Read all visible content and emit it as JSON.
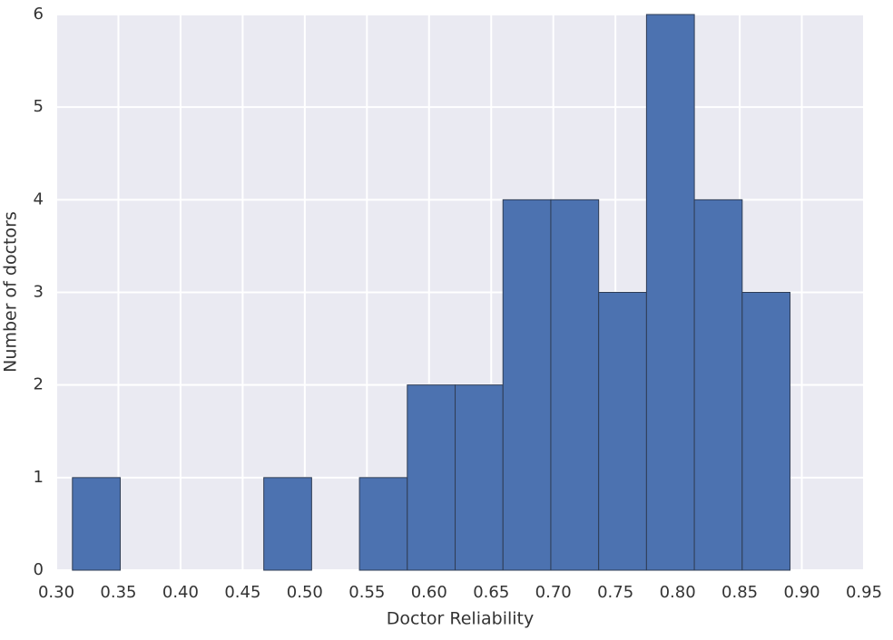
{
  "chart_data": {
    "type": "histogram",
    "x_label": "Doctor Reliability",
    "y_label": "Number of doctors",
    "bins": [
      0.313,
      0.3515,
      0.39,
      0.4285,
      0.467,
      0.5055,
      0.544,
      0.5825,
      0.621,
      0.6595,
      0.698,
      0.7365,
      0.775,
      0.8135,
      0.852,
      0.8905
    ],
    "values": [
      1,
      0,
      0,
      0,
      1,
      0,
      1,
      2,
      2,
      4,
      4,
      3,
      6,
      4,
      3
    ],
    "color": "#4c72b0",
    "edge_color": "#2f3d55",
    "background": "#eaeaf2",
    "grid": true,
    "xlim": [
      0.3,
      0.95
    ],
    "xticks": [
      {
        "value": 0.3,
        "label": "0.30"
      },
      0.35,
      {
        "value": 0.4,
        "label": "0.40"
      },
      0.45,
      {
        "value": 0.5,
        "label": "0.50"
      },
      0.55,
      {
        "value": 0.6,
        "label": "0.60"
      },
      0.65,
      {
        "value": 0.7,
        "label": "0.70"
      },
      0.75,
      {
        "value": 0.8,
        "label": "0.80"
      },
      0.85,
      {
        "value": 0.9,
        "label": "0.90"
      },
      0.95
    ],
    "ylim": [
      0,
      6
    ],
    "yticks": [
      0,
      1,
      2,
      3,
      4,
      5,
      6
    ]
  }
}
